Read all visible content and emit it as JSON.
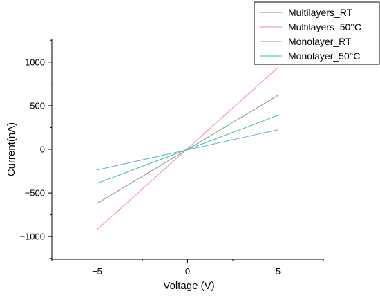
{
  "chart_data": {
    "type": "line",
    "xlabel": "Voltage (V)",
    "ylabel": "Current(nA)",
    "xlim": [
      -7.5,
      7.5
    ],
    "ylim": [
      -1260,
      1260
    ],
    "x_ticks": [
      -5,
      0,
      5
    ],
    "x_tick_labels": [
      "−5",
      "0",
      "5"
    ],
    "y_ticks": [
      -1000,
      -500,
      0,
      500,
      1000
    ],
    "y_tick_labels": [
      "−1000",
      "−500",
      "0",
      "500",
      "1000"
    ],
    "grid": false,
    "legend_position": "top-right",
    "series": [
      {
        "name": "Multilayers_RT",
        "color": "#888888",
        "x": [
          -5,
          5
        ],
        "y": [
          -620,
          620
        ]
      },
      {
        "name": "Multilayers_50°C",
        "color": "#f28b8b",
        "x": [
          -5,
          5
        ],
        "y": [
          -920,
          940
        ]
      },
      {
        "name": "Monolayer_RT",
        "color": "#5aaee0",
        "x": [
          -5,
          5
        ],
        "y": [
          -235,
          225
        ]
      },
      {
        "name": "Monolayer_50°C",
        "color": "#2ec48f",
        "x": [
          -5,
          5
        ],
        "y": [
          -390,
          390
        ]
      }
    ]
  }
}
